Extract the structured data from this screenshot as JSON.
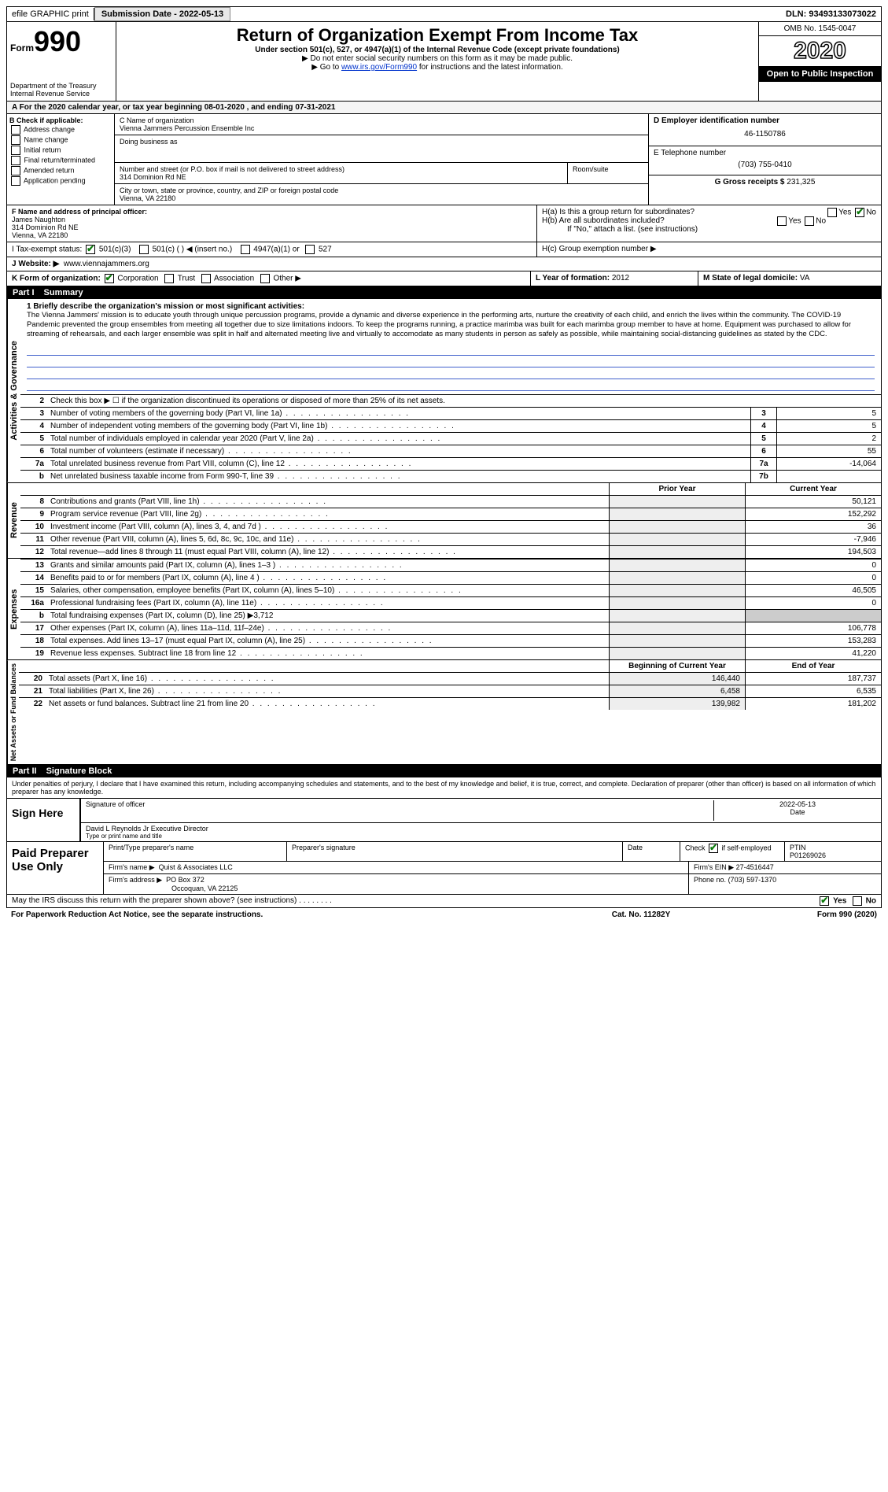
{
  "top": {
    "efile": "efile GRAPHIC print",
    "submission_label": "Submission Date - 2022-05-13",
    "dln": "DLN: 93493133073022"
  },
  "header": {
    "form_prefix": "Form",
    "form_number": "990",
    "dept1": "Department of the Treasury",
    "dept2": "Internal Revenue Service",
    "title": "Return of Organization Exempt From Income Tax",
    "sub": "Under section 501(c), 527, or 4947(a)(1) of the Internal Revenue Code (except private foundations)",
    "arrow1": "▶ Do not enter social security numbers on this form as it may be made public.",
    "arrow2_pre": "▶ Go to ",
    "arrow2_link": "www.irs.gov/Form990",
    "arrow2_post": " for instructions and the latest information.",
    "omb": "OMB No. 1545-0047",
    "year": "2020",
    "open": "Open to Public Inspection"
  },
  "period": "A For the 2020 calendar year, or tax year beginning 08-01-2020    , and ending 07-31-2021",
  "section_b": {
    "label": "B Check if applicable:",
    "opts": [
      "Address change",
      "Name change",
      "Initial return",
      "Final return/terminated",
      "Amended return",
      "Application pending"
    ]
  },
  "section_c": {
    "name_label": "C Name of organization",
    "name": "Vienna Jammers Percussion Ensemble Inc",
    "dba_label": "Doing business as",
    "addr_label": "Number and street (or P.O. box if mail is not delivered to street address)",
    "addr": "314 Dominion Rd NE",
    "room_label": "Room/suite",
    "city_label": "City or town, state or province, country, and ZIP or foreign postal code",
    "city": "Vienna, VA  22180"
  },
  "section_d": {
    "label": "D Employer identification number",
    "value": "46-1150786"
  },
  "section_e": {
    "label": "E Telephone number",
    "value": "(703) 755-0410"
  },
  "section_g": {
    "label": "G Gross receipts $",
    "value": "231,325"
  },
  "section_f": {
    "label": "F  Name and address of principal officer:",
    "name": "James Naughton",
    "addr1": "314 Dominion Rd NE",
    "addr2": "Vienna, VA  22180"
  },
  "section_h": {
    "ha": "H(a)  Is this a group return for subordinates?",
    "hb": "H(b)  Are all subordinates included?",
    "hb_note": "If \"No,\" attach a list. (see instructions)",
    "hc": "H(c)  Group exemption number ▶",
    "yes": "Yes",
    "no": "No"
  },
  "section_i": {
    "label": "I   Tax-exempt status:",
    "o1": "501(c)(3)",
    "o2": "501(c) (  ) ◀ (insert no.)",
    "o3": "4947(a)(1) or",
    "o4": "527"
  },
  "section_j": {
    "label": "J   Website: ▶",
    "value": "www.viennajammers.org"
  },
  "section_k": {
    "label": "K Form of organization:",
    "o1": "Corporation",
    "o2": "Trust",
    "o3": "Association",
    "o4": "Other ▶"
  },
  "section_l": {
    "label": "L Year of formation:",
    "value": "2012"
  },
  "section_m": {
    "label": "M State of legal domicile:",
    "value": "VA"
  },
  "part1": {
    "num": "Part I",
    "title": "Summary"
  },
  "mission": {
    "label": "1   Briefly describe the organization's mission or most significant activities:",
    "text": "The Vienna Jammers' mission is to educate youth through unique percussion programs, provide a dynamic and diverse experience in the performing arts, nurture the creativity of each child, and enrich the lives within the community. The COVID-19 Pandemic prevented the group ensembles from meeting all together due to size limitations indoors. To keep the programs running, a practice marimba was built for each marimba group member to have at home. Equipment was purchased to allow for streaming of rehearsals, and each larger ensemble was split in half and alternated meeting live and virtually to accomodate as many students in person as safely as possible, while maintaining social-distancing guidelines as stated by the CDC."
  },
  "line2": "Check this box ▶ ☐ if the organization discontinued its operations or disposed of more than 25% of its net assets.",
  "gov_side": "Activities & Governance",
  "rev_side": "Revenue",
  "exp_side": "Expenses",
  "na_side": "Net Assets or Fund Balances",
  "gov_rows": [
    {
      "n": "3",
      "d": "Number of voting members of the governing body (Part VI, line 1a)",
      "c": "3",
      "v": "5"
    },
    {
      "n": "4",
      "d": "Number of independent voting members of the governing body (Part VI, line 1b)",
      "c": "4",
      "v": "5"
    },
    {
      "n": "5",
      "d": "Total number of individuals employed in calendar year 2020 (Part V, line 2a)",
      "c": "5",
      "v": "2"
    },
    {
      "n": "6",
      "d": "Total number of volunteers (estimate if necessary)",
      "c": "6",
      "v": "55"
    },
    {
      "n": "7a",
      "d": "Total unrelated business revenue from Part VIII, column (C), line 12",
      "c": "7a",
      "v": "-14,064"
    },
    {
      "n": "b",
      "d": "Net unrelated business taxable income from Form 990-T, line 39",
      "c": "7b",
      "v": ""
    }
  ],
  "py_label": "Prior Year",
  "cy_label": "Current Year",
  "rev_rows": [
    {
      "n": "8",
      "d": "Contributions and grants (Part VIII, line 1h)",
      "py": "",
      "cy": "50,121"
    },
    {
      "n": "9",
      "d": "Program service revenue (Part VIII, line 2g)",
      "py": "",
      "cy": "152,292"
    },
    {
      "n": "10",
      "d": "Investment income (Part VIII, column (A), lines 3, 4, and 7d )",
      "py": "",
      "cy": "36"
    },
    {
      "n": "11",
      "d": "Other revenue (Part VIII, column (A), lines 5, 6d, 8c, 9c, 10c, and 11e)",
      "py": "",
      "cy": "-7,946"
    },
    {
      "n": "12",
      "d": "Total revenue—add lines 8 through 11 (must equal Part VIII, column (A), line 12)",
      "py": "",
      "cy": "194,503"
    }
  ],
  "exp_rows": [
    {
      "n": "13",
      "d": "Grants and similar amounts paid (Part IX, column (A), lines 1–3 )",
      "py": "",
      "cy": "0"
    },
    {
      "n": "14",
      "d": "Benefits paid to or for members (Part IX, column (A), line 4 )",
      "py": "",
      "cy": "0"
    },
    {
      "n": "15",
      "d": "Salaries, other compensation, employee benefits (Part IX, column (A), lines 5–10)",
      "py": "",
      "cy": "46,505"
    },
    {
      "n": "16a",
      "d": "Professional fundraising fees (Part IX, column (A), line 11e)",
      "py": "",
      "cy": "0"
    },
    {
      "n": "b",
      "d": "Total fundraising expenses (Part IX, column (D), line 25) ▶3,712",
      "py": null,
      "cy": null
    },
    {
      "n": "17",
      "d": "Other expenses (Part IX, column (A), lines 11a–11d, 11f–24e)",
      "py": "",
      "cy": "106,778"
    },
    {
      "n": "18",
      "d": "Total expenses. Add lines 13–17 (must equal Part IX, column (A), line 25)",
      "py": "",
      "cy": "153,283"
    },
    {
      "n": "19",
      "d": "Revenue less expenses. Subtract line 18 from line 12",
      "py": "",
      "cy": "41,220"
    }
  ],
  "boy_label": "Beginning of Current Year",
  "eoy_label": "End of Year",
  "na_rows": [
    {
      "n": "20",
      "d": "Total assets (Part X, line 16)",
      "py": "146,440",
      "cy": "187,737"
    },
    {
      "n": "21",
      "d": "Total liabilities (Part X, line 26)",
      "py": "6,458",
      "cy": "6,535"
    },
    {
      "n": "22",
      "d": "Net assets or fund balances. Subtract line 21 from line 20",
      "py": "139,982",
      "cy": "181,202"
    }
  ],
  "part2": {
    "num": "Part II",
    "title": "Signature Block"
  },
  "declaration": "Under penalties of perjury, I declare that I have examined this return, including accompanying schedules and statements, and to the best of my knowledge and belief, it is true, correct, and complete. Declaration of preparer (other than officer) is based on all information of which preparer has any knowledge.",
  "sign": {
    "here": "Sign Here",
    "sig_label": "Signature of officer",
    "date_label": "Date",
    "date": "2022-05-13",
    "name": "David L Reynolds Jr  Executive Director",
    "name_label": "Type or print name and title"
  },
  "prep": {
    "label": "Paid Preparer Use Only",
    "r1_a": "Print/Type preparer's name",
    "r1_b": "Preparer's signature",
    "r1_c": "Date",
    "r1_d_pre": "Check",
    "r1_d_post": "if self-employed",
    "r1_e": "PTIN",
    "r1_e_val": "P01269026",
    "r2_a": "Firm's name   ▶",
    "r2_a_val": "Quist & Associates LLC",
    "r2_b": "Firm's EIN ▶",
    "r2_b_val": "27-4516447",
    "r3_a": "Firm's address ▶",
    "r3_a_val": "PO Box 372",
    "r3_a_val2": "Occoquan, VA  22125",
    "r3_b": "Phone no.",
    "r3_b_val": "(703) 597-1370"
  },
  "discuss": {
    "q": "May the IRS discuss this return with the preparer shown above? (see instructions)",
    "yes": "Yes",
    "no": "No"
  },
  "footer": {
    "l": "For Paperwork Reduction Act Notice, see the separate instructions.",
    "c": "Cat. No. 11282Y",
    "r": "Form 990 (2020)"
  }
}
